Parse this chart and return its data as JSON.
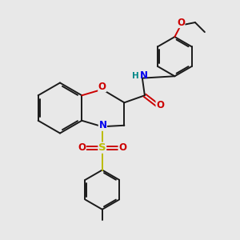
{
  "bg_color": "#e8e8e8",
  "bond_color": "#1a1a1a",
  "atom_colors": {
    "O": "#cc0000",
    "N": "#0000ee",
    "S": "#bbbb00",
    "H": "#008888",
    "C": "#1a1a1a"
  },
  "figsize": [
    3.0,
    3.0
  ],
  "dpi": 100
}
